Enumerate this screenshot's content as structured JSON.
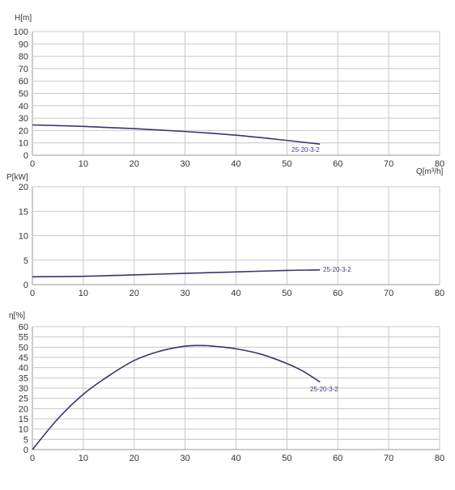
{
  "colors": {
    "curve": "#35356e",
    "grid": "#c8c8c8",
    "series_label": "#3c3c8c"
  },
  "chart_data": [
    {
      "type": "line",
      "title": "",
      "ylabel": "H[m]",
      "xlabel": "Q[m³/h]",
      "xlim": [
        0,
        80
      ],
      "ylim": [
        0,
        100
      ],
      "xticks": [
        "0",
        "10",
        "20",
        "30",
        "40",
        "50",
        "60",
        "70",
        "80"
      ],
      "yticks": [
        "0",
        "10",
        "20",
        "30",
        "40",
        "50",
        "60",
        "70",
        "80",
        "90",
        "100"
      ],
      "grid": true,
      "series": [
        {
          "name": "25-20-3-2",
          "x": [
            0,
            10,
            20,
            30,
            40,
            50,
            56.5
          ],
          "y": [
            24.5,
            23.3,
            21.5,
            19.2,
            16.2,
            12.0,
            9.0
          ]
        }
      ]
    },
    {
      "type": "line",
      "title": "",
      "ylabel": "P[kW]",
      "xlabel": "",
      "xlim": [
        0,
        80
      ],
      "ylim": [
        0,
        20
      ],
      "xticks": [
        "0",
        "10",
        "20",
        "30",
        "40",
        "50",
        "60",
        "70",
        "80"
      ],
      "yticks": [
        "0",
        "5",
        "10",
        "15",
        "20"
      ],
      "grid": true,
      "series": [
        {
          "name": "25-20-3-2",
          "x": [
            0,
            10,
            20,
            30,
            40,
            50,
            56.5
          ],
          "y": [
            1.6,
            1.7,
            2.0,
            2.3,
            2.6,
            2.9,
            3.0
          ]
        }
      ]
    },
    {
      "type": "line",
      "title": "",
      "ylabel": "η[%]",
      "xlabel": "",
      "xlim": [
        0,
        80
      ],
      "ylim": [
        0,
        60
      ],
      "xticks": [
        "0",
        "10",
        "20",
        "30",
        "40",
        "50",
        "60",
        "70",
        "80"
      ],
      "yticks": [
        "0",
        "5",
        "10",
        "15",
        "20",
        "25",
        "30",
        "35",
        "40",
        "45",
        "50",
        "55",
        "60"
      ],
      "grid": true,
      "series": [
        {
          "name": "25-20-3-2",
          "x": [
            0,
            5,
            10,
            15,
            20,
            25,
            30,
            33,
            35,
            40,
            45,
            50,
            53,
            56.5
          ],
          "y": [
            0,
            15,
            27,
            36,
            43.5,
            48,
            50.5,
            50.8,
            50.6,
            49.2,
            46.5,
            42,
            38.5,
            33
          ]
        }
      ]
    }
  ]
}
